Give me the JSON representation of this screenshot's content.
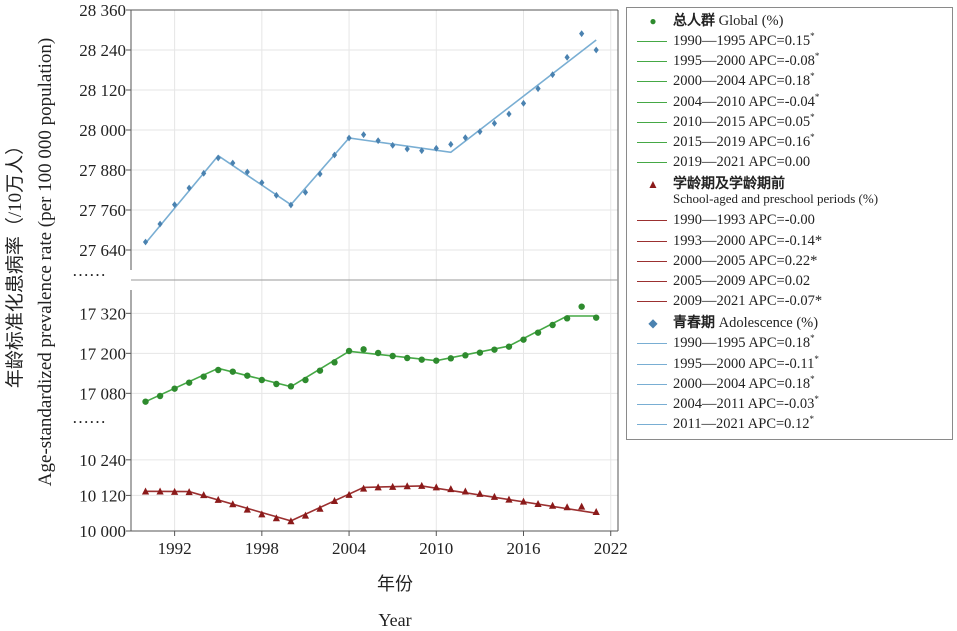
{
  "colors": {
    "global": "#2e8b2e",
    "global_line": "#45a845",
    "school": "#8b1a1a",
    "school_line": "#9b3030",
    "adol": "#4a82b0",
    "adol_line": "#79aed3",
    "grid": "#e6e6e6",
    "axis": "#555555"
  },
  "axis": {
    "ylabel_cn": "年龄标准化患病率（/10万人）",
    "ylabel_en": "Age-standardized prevalence rate (per 100 000 population)",
    "xlabel_cn": "年份",
    "xlabel_en": "Year",
    "break_mark": "……",
    "x_ticks": [
      1992,
      1998,
      2004,
      2010,
      2016,
      2022
    ],
    "x_range": [
      1989,
      2022.5
    ]
  },
  "chart_data": {
    "type": "line",
    "x": [
      1990,
      1991,
      1992,
      1993,
      1994,
      1995,
      1996,
      1997,
      1998,
      1999,
      2000,
      2001,
      2002,
      2003,
      2004,
      2005,
      2006,
      2007,
      2008,
      2009,
      2010,
      2011,
      2012,
      2013,
      2014,
      2015,
      2016,
      2017,
      2018,
      2019,
      2020,
      2021
    ],
    "panels": [
      {
        "name": "adolescence",
        "y_ticks": [
          "27 640",
          "27 760",
          "27 880",
          "28 000",
          "28 120",
          "28 240",
          "28 360"
        ],
        "y_tick_values": [
          27640,
          27760,
          27880,
          28000,
          28120,
          28240,
          28360
        ],
        "ylim": [
          27580,
          28360
        ]
      },
      {
        "name": "global",
        "y_ticks": [
          "17 080",
          "17 200",
          "17 320"
        ],
        "y_tick_values": [
          17080,
          17200,
          17320
        ],
        "ylim": [
          17000,
          17390
        ]
      },
      {
        "name": "school",
        "y_ticks": [
          "10 000",
          "10 120",
          "10 240"
        ],
        "y_tick_values": [
          10000,
          10120,
          10240
        ],
        "ylim": [
          10000,
          10290
        ]
      }
    ],
    "series": [
      {
        "name": "总人群 Global (%)",
        "key": "global",
        "panel": 1,
        "marker": "circle",
        "values": [
          17055,
          17072,
          17094,
          17112,
          17130,
          17150,
          17145,
          17133,
          17120,
          17108,
          17101,
          17120,
          17148,
          17173,
          17207,
          17212,
          17201,
          17192,
          17186,
          17181,
          17178,
          17185,
          17194,
          17202,
          17211,
          17220,
          17241,
          17262,
          17285,
          17305,
          17340,
          17307
        ],
        "fit": [
          [
            1990,
            17055
          ],
          [
            1995,
            17155
          ],
          [
            2000,
            17100
          ],
          [
            2004,
            17206
          ],
          [
            2010,
            17178
          ],
          [
            2015,
            17222
          ],
          [
            2019,
            17312
          ],
          [
            2021,
            17312
          ]
        ]
      },
      {
        "name": "学龄期及学龄期前 School-aged and preschool periods (%)",
        "key": "school",
        "panel": 2,
        "marker": "triangle",
        "values": [
          10133,
          10133,
          10132,
          10131,
          10121,
          10105,
          10090,
          10072,
          10056,
          10043,
          10033,
          10052,
          10075,
          10101,
          10122,
          10143,
          10147,
          10149,
          10151,
          10152,
          10147,
          10141,
          10133,
          10125,
          10115,
          10106,
          10099,
          10091,
          10085,
          10080,
          10082,
          10064
        ],
        "fit": [
          [
            1990,
            10134
          ],
          [
            1993,
            10133
          ],
          [
            2000,
            10034
          ],
          [
            2005,
            10147
          ],
          [
            2009,
            10152
          ],
          [
            2021,
            10060
          ]
        ]
      },
      {
        "name": "青春期 Adolescence (%)",
        "key": "adol",
        "panel": 0,
        "marker": "diamond",
        "values": [
          27664,
          27718,
          27776,
          27826,
          27870,
          27916,
          27901,
          27874,
          27842,
          27804,
          27775,
          27813,
          27868,
          27925,
          27976,
          27986,
          27968,
          27954,
          27943,
          27938,
          27945,
          27957,
          27977,
          27995,
          28020,
          28048,
          28080,
          28124,
          28166,
          28218,
          28289,
          28240
        ],
        "fit": [
          [
            1990,
            27660
          ],
          [
            1995,
            27923
          ],
          [
            2000,
            27776
          ],
          [
            2004,
            27976
          ],
          [
            2011,
            27933
          ],
          [
            2021,
            28270
          ]
        ]
      }
    ]
  },
  "legend": {
    "groups": [
      {
        "key": "global",
        "marker": "●",
        "title_cn": "总人群",
        "title_en": "Global (%)",
        "items": [
          {
            "period": "1990—1995",
            "apc": "APC=0.15",
            "star": "*",
            "sup": true
          },
          {
            "period": "1995—2000",
            "apc": "APC=-0.08",
            "star": "*",
            "sup": true
          },
          {
            "period": "2000—2004",
            "apc": "APC=0.18",
            "star": "*",
            "sup": true
          },
          {
            "period": "2004—2010",
            "apc": "APC=-0.04",
            "star": "*",
            "sup": true
          },
          {
            "period": "2010—2015",
            "apc": "APC=0.05",
            "star": "*",
            "sup": true
          },
          {
            "period": "2015—2019",
            "apc": "APC=0.16",
            "star": "*",
            "sup": true
          },
          {
            "period": "2019—2021",
            "apc": "APC=0.00",
            "star": "",
            "sup": false
          }
        ]
      },
      {
        "key": "school",
        "marker": "▲",
        "title_cn": "学龄期及学龄期前",
        "title_en": "School-aged and preschool periods (%)",
        "items": [
          {
            "period": "1990—1993",
            "apc": "APC=-0.00",
            "star": "",
            "sup": false
          },
          {
            "period": "1993—2000",
            "apc": "APC=-0.14",
            "star": "*",
            "sup": false
          },
          {
            "period": "2000—2005",
            "apc": "APC=0.22",
            "star": "*",
            "sup": false
          },
          {
            "period": "2005—2009",
            "apc": "APC=0.02",
            "star": "",
            "sup": false
          },
          {
            "period": "2009—2021",
            "apc": "APC=-0.07",
            "star": "*",
            "sup": false
          }
        ]
      },
      {
        "key": "adol",
        "marker": "◆",
        "title_cn": "青春期",
        "title_en": "Adolescence (%)",
        "items": [
          {
            "period": "1990—1995",
            "apc": "APC=0.18",
            "star": "*",
            "sup": true
          },
          {
            "period": "1995—2000",
            "apc": "APC=-0.11",
            "star": "*",
            "sup": true
          },
          {
            "period": "2000—2004",
            "apc": "APC=0.18",
            "star": "*",
            "sup": true
          },
          {
            "period": "2004—2011",
            "apc": "APC=-0.03",
            "star": "*",
            "sup": true
          },
          {
            "period": "2011—2021",
            "apc": "APC=0.12",
            "star": "*",
            "sup": true
          }
        ]
      }
    ]
  }
}
